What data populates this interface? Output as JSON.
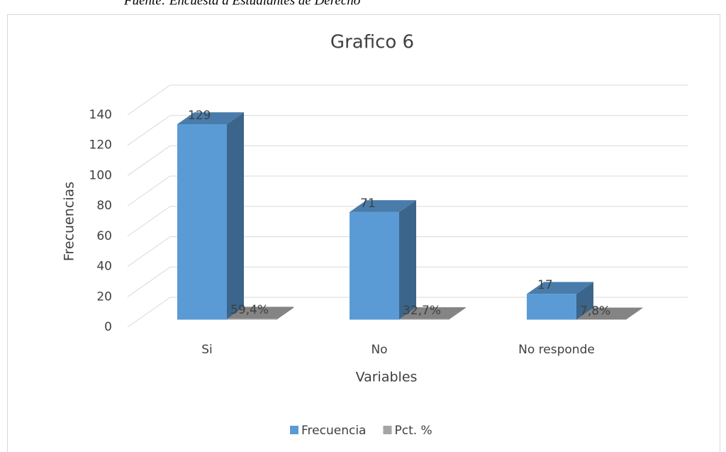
{
  "source": "Fuente: Encuesta a Estudiantes de Derecho",
  "chart_data": {
    "type": "bar3d",
    "title": "Grafico 6",
    "x_label": "Variables",
    "y_label": "Frecuencias",
    "categories": [
      "Si",
      "No",
      "No responde"
    ],
    "series": [
      {
        "name": "Frecuencia",
        "color": "#5b9bd5",
        "values": [
          129,
          71,
          17
        ],
        "value_labels": [
          "129",
          "71",
          "17"
        ]
      },
      {
        "name": "Pct. %",
        "color": "#a5a5a5",
        "values": [
          0.594,
          0.327,
          0.078
        ],
        "value_labels": [
          "59,4%",
          "32,7%",
          "7,8%"
        ]
      }
    ],
    "ylim": [
      0,
      140
    ],
    "yticks": [
      0,
      20,
      40,
      60,
      80,
      100,
      120,
      140
    ],
    "grid": true,
    "legend": "bottom"
  }
}
